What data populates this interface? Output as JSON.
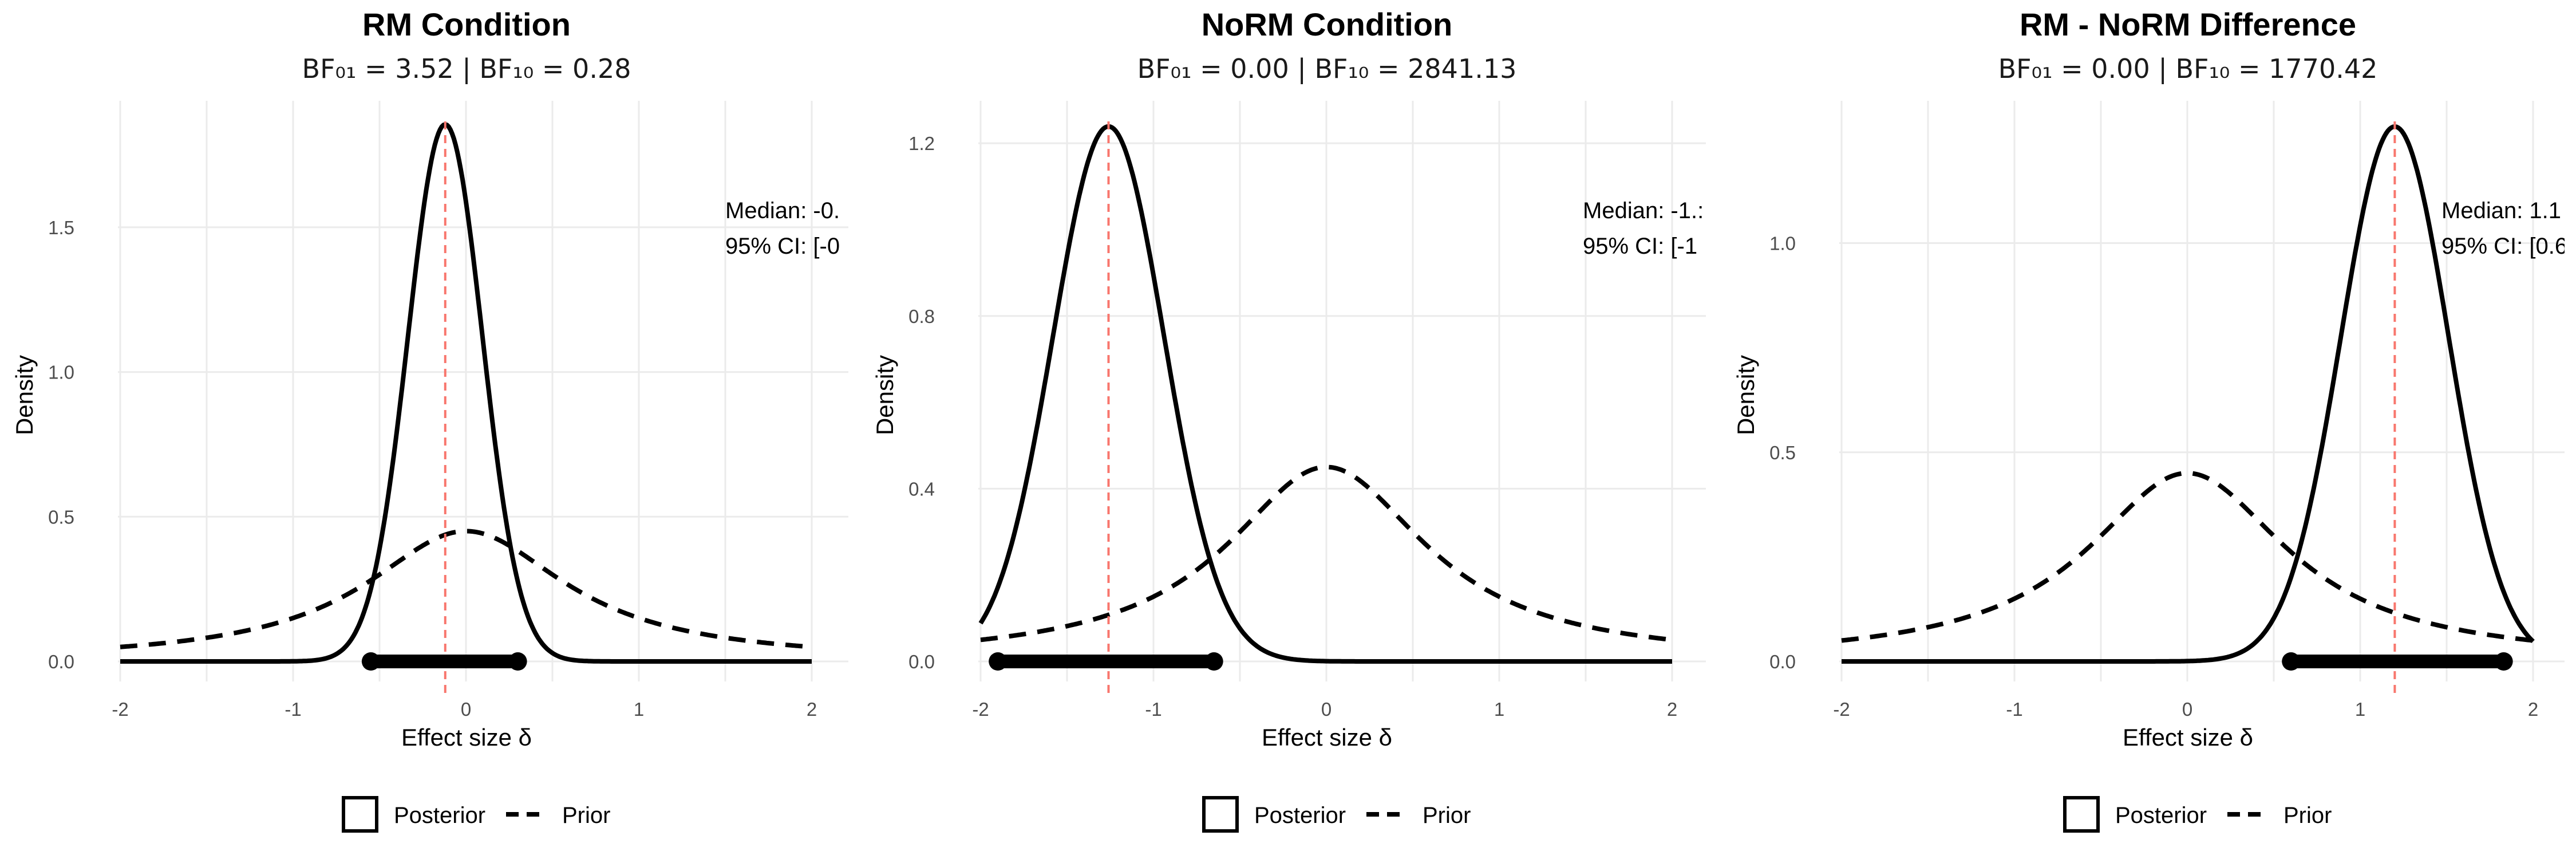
{
  "chart_data": [
    {
      "type": "line",
      "title": "RM Condition",
      "subtitle": "BF₀₁ = 3.52 | BF₁₀ = 0.28",
      "xlabel": "Effect size δ",
      "ylabel": "Density",
      "xlim": [
        -2,
        2
      ],
      "ylim": [
        0,
        1.85
      ],
      "xticks": [
        "-2",
        "-1",
        "0",
        "1",
        "2"
      ],
      "yticks": [
        "0.0",
        "0.5",
        "1.0",
        "1.5"
      ],
      "grid": true,
      "posterior": {
        "median": -0.12,
        "sd": 0.215
      },
      "prior": {
        "distribution": "cauchy",
        "scale": 0.707
      },
      "median_line": -0.12,
      "ci": [
        -0.55,
        0.3
      ],
      "annotation_lines": [
        "Median: -0.",
        "95% CI: [-0"
      ],
      "legend": [
        "Posterior",
        "Prior"
      ],
      "legend_position": "bottom"
    },
    {
      "type": "line",
      "title": "NoRM Condition",
      "subtitle": "BF₀₁ = 0.00 | BF₁₀ = 2841.13",
      "xlabel": "Effect size δ",
      "ylabel": "Density",
      "xlim": [
        -2,
        2
      ],
      "ylim": [
        0,
        1.24
      ],
      "xticks": [
        "-2",
        "-1",
        "0",
        "1",
        "2"
      ],
      "yticks": [
        "0.0",
        "0.4",
        "0.8",
        "1.2"
      ],
      "grid": true,
      "posterior": {
        "median": -1.26,
        "sd": 0.322
      },
      "prior": {
        "distribution": "cauchy",
        "scale": 0.707
      },
      "median_line": -1.26,
      "ci": [
        -1.9,
        -0.65
      ],
      "annotation_lines": [
        "Median: -1.:",
        "95% CI: [-1"
      ],
      "legend": [
        "Posterior",
        "Prior"
      ],
      "legend_position": "bottom"
    },
    {
      "type": "line",
      "title": "RM - NoRM Difference",
      "subtitle": "BF₀₁ = 0.00 | BF₁₀ = 1770.42",
      "xlabel": "Effect size δ",
      "ylabel": "Density",
      "xlim": [
        -2,
        2
      ],
      "ylim": [
        0,
        1.28
      ],
      "xticks": [
        "-2",
        "-1",
        "0",
        "1",
        "2"
      ],
      "yticks": [
        "0.0",
        "0.5",
        "1.0"
      ],
      "grid": true,
      "posterior": {
        "median": 1.2,
        "sd": 0.312
      },
      "prior": {
        "distribution": "cauchy",
        "scale": 0.707
      },
      "median_line": 1.2,
      "ci": [
        0.6,
        1.83
      ],
      "annotation_lines": [
        "Median: 1.1",
        "95% CI: [0.6"
      ],
      "legend": [
        "Posterior",
        "Prior"
      ],
      "legend_position": "bottom"
    }
  ],
  "colors": {
    "curve": "#000000",
    "median_line": "#f8766d",
    "grid": "#ebebeb"
  }
}
